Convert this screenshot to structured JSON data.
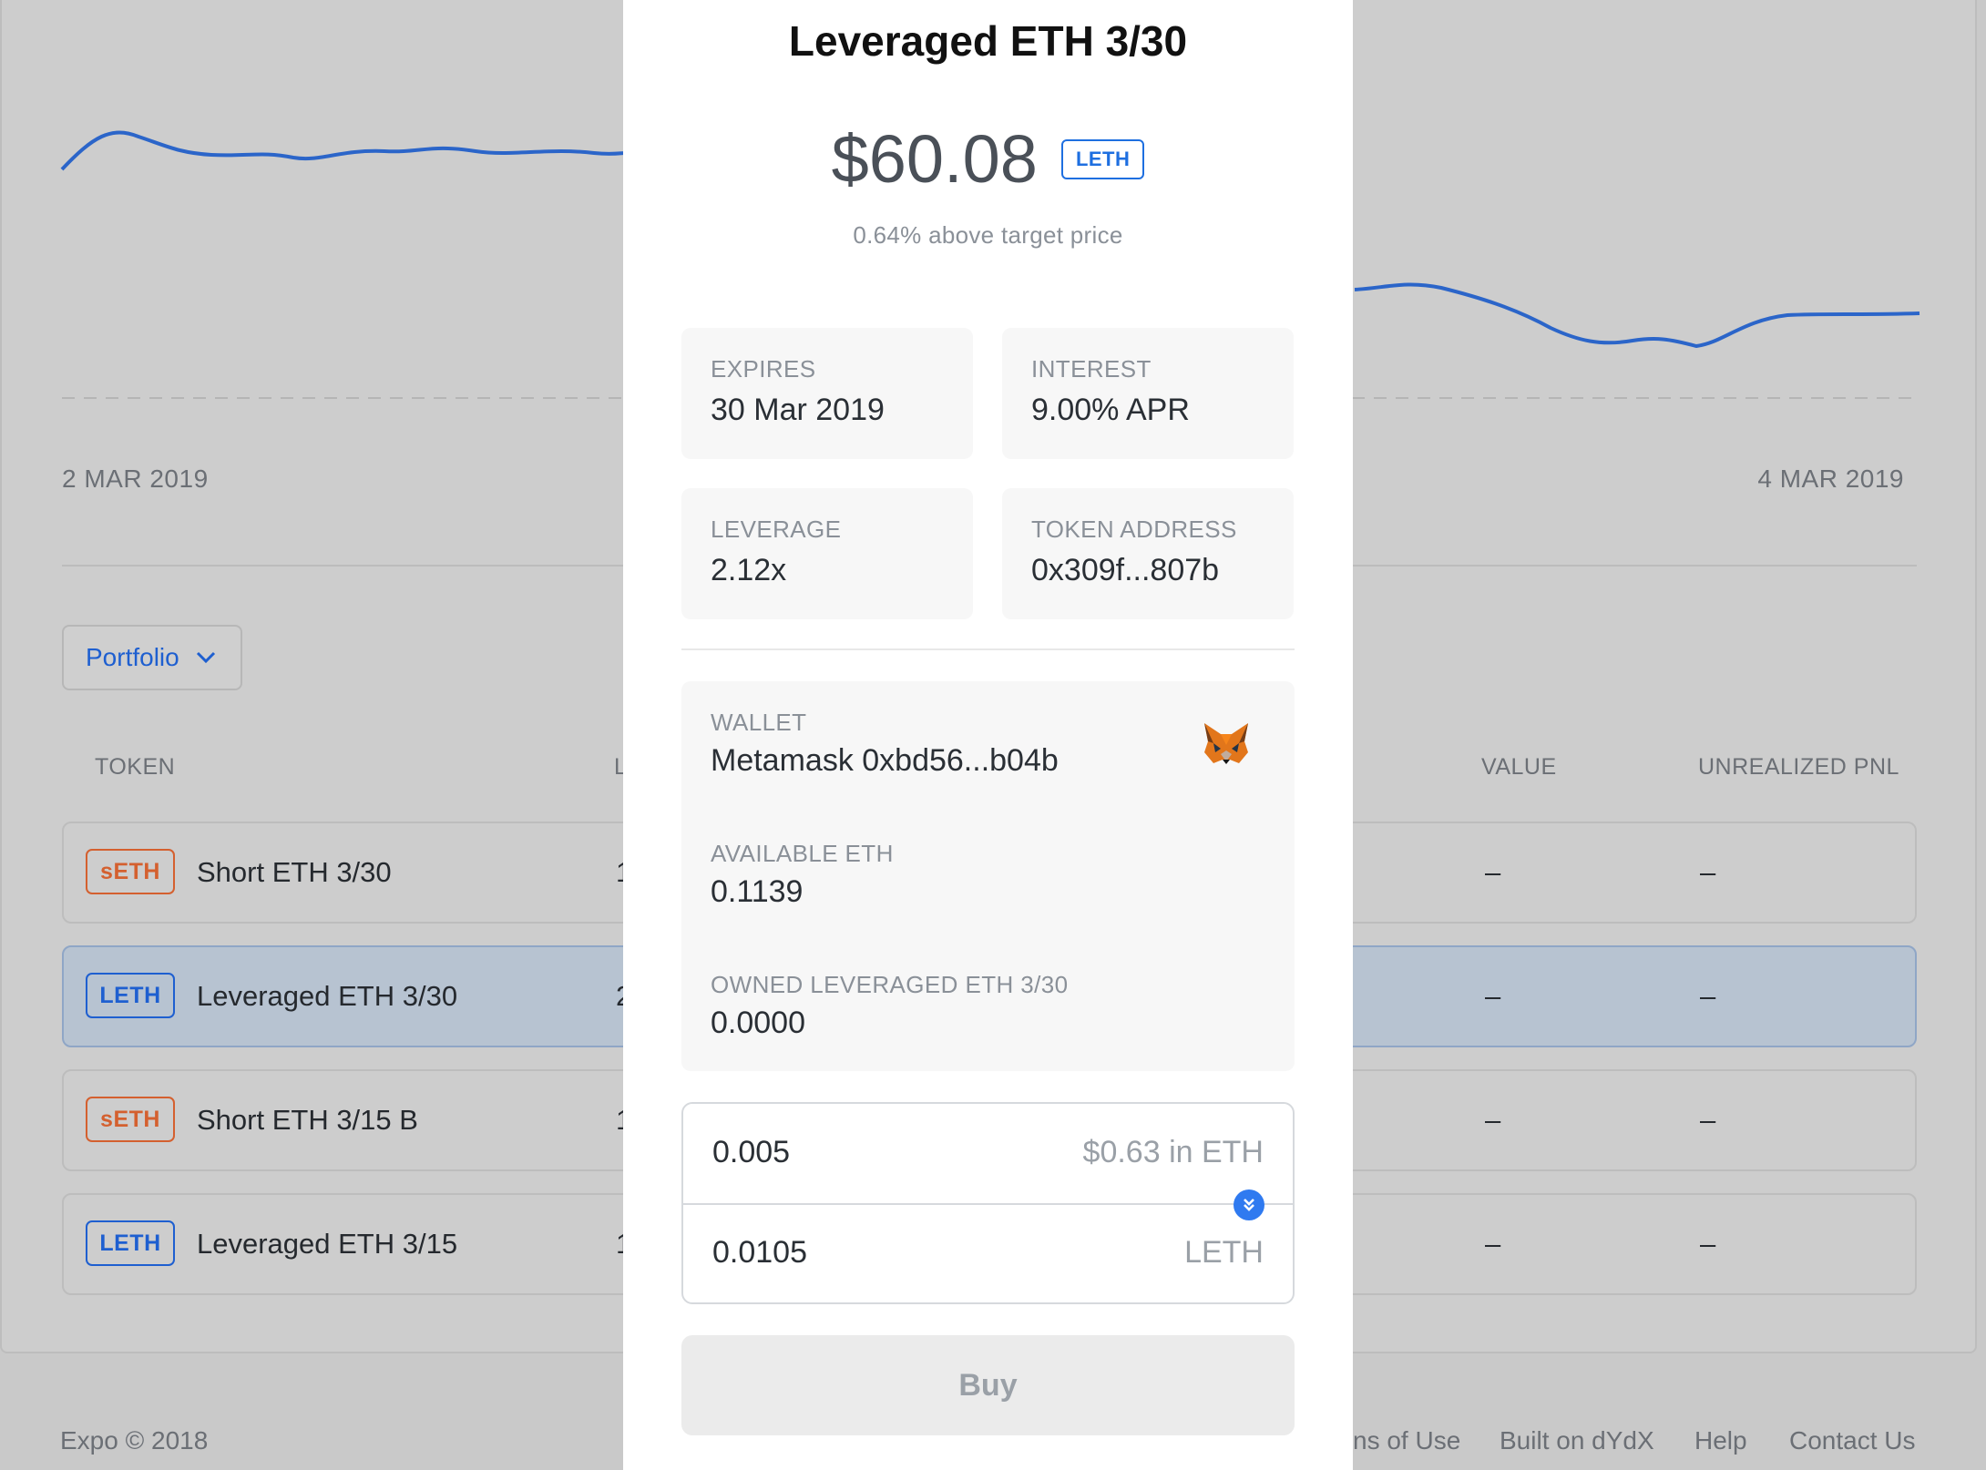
{
  "background": {
    "chart": {
      "left_date": "2 MAR 2019",
      "right_date": "4 MAR 2019",
      "line_color": "#2b65c9"
    },
    "portfolio_button": {
      "label": "Portfolio",
      "icon": "chevron-down-icon"
    },
    "table": {
      "columns": {
        "token": "TOKEN",
        "leverage": "L",
        "value": "VALUE",
        "pnl": "UNREALIZED PNL"
      },
      "rows": [
        {
          "badge": "sETH",
          "badge_type": "seth",
          "name": "Short ETH 3/30",
          "lev": "1",
          "value": "–",
          "pnl": "–"
        },
        {
          "badge": "LETH",
          "badge_type": "leth",
          "name": "Leveraged ETH 3/30",
          "lev": "2",
          "value": "–",
          "pnl": "–",
          "selected": true
        },
        {
          "badge": "sETH",
          "badge_type": "seth",
          "name": "Short ETH 3/15 B",
          "lev": "1",
          "value": "–",
          "pnl": "–"
        },
        {
          "badge": "LETH",
          "badge_type": "leth",
          "name": "Leveraged ETH 3/15",
          "lev": "1",
          "value": "–",
          "pnl": "–"
        }
      ]
    },
    "footer": {
      "copyright": "Expo © 2018",
      "terms": "ns of Use",
      "built_on": "Built on dYdX",
      "help": "Help",
      "contact": "Contact Us"
    }
  },
  "modal": {
    "title": "Leveraged ETH 3/30",
    "price": "$60.08",
    "price_badge": "LETH",
    "subtitle": "0.64% above target price",
    "info": {
      "expires": {
        "label": "EXPIRES",
        "value": "30 Mar 2019"
      },
      "interest": {
        "label": "INTEREST",
        "value": "9.00% APR"
      },
      "leverage": {
        "label": "LEVERAGE",
        "value": "2.12x"
      },
      "token_address": {
        "label": "TOKEN ADDRESS",
        "value": "0x309f...807b"
      }
    },
    "wallet": {
      "label": "WALLET",
      "value": "Metamask 0xbd56...b04b",
      "icon": "metamask-fox-icon",
      "available_label": "AVAILABLE ETH",
      "available_value": "0.1139",
      "owned_label": "OWNED LEVERAGED ETH 3/30",
      "owned_value": "0.0000"
    },
    "trade": {
      "input_value": "0.005",
      "input_unit": "$0.63 in ETH",
      "output_value": "0.0105",
      "output_unit": "LETH",
      "swap_icon": "double-chevron-down-icon"
    },
    "buy_label": "Buy"
  }
}
